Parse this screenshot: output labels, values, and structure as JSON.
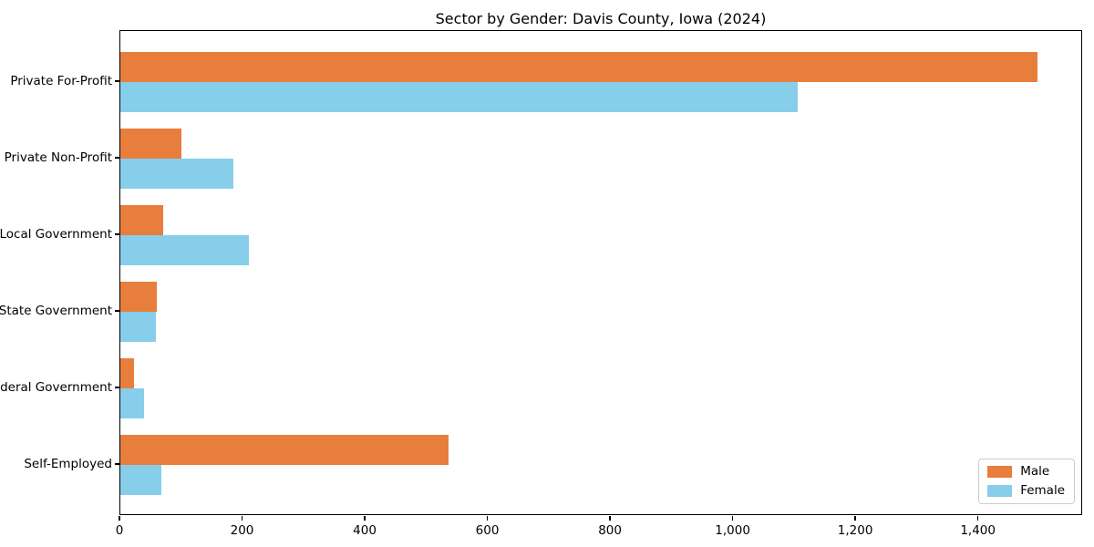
{
  "chart_data": {
    "type": "bar",
    "orientation": "horizontal",
    "title": "Sector by Gender: Davis County, Iowa (2024)",
    "categories": [
      "Private For-Profit",
      "Private Non-Profit",
      "Local Government",
      "State Government",
      "Federal Government",
      "Self-Employed"
    ],
    "series": [
      {
        "name": "Male",
        "color": "#E87E3C",
        "values": [
          1495,
          100,
          70,
          60,
          22,
          535
        ]
      },
      {
        "name": "Female",
        "color": "#87CEEB",
        "values": [
          1105,
          185,
          210,
          58,
          38,
          67
        ]
      }
    ],
    "xlim": [
      0,
      1570
    ],
    "xticks": [
      0,
      200,
      400,
      600,
      800,
      1000,
      1200,
      1400
    ],
    "xtick_labels": [
      "0",
      "200",
      "400",
      "600",
      "800",
      "1,000",
      "1,200",
      "1,400"
    ],
    "ylabel": "",
    "xlabel": "",
    "grid": false,
    "legend_position": "lower right",
    "legend_items": [
      {
        "label": "Male",
        "color": "#E87E3C"
      },
      {
        "label": "Female",
        "color": "#87CEEB"
      }
    ]
  }
}
